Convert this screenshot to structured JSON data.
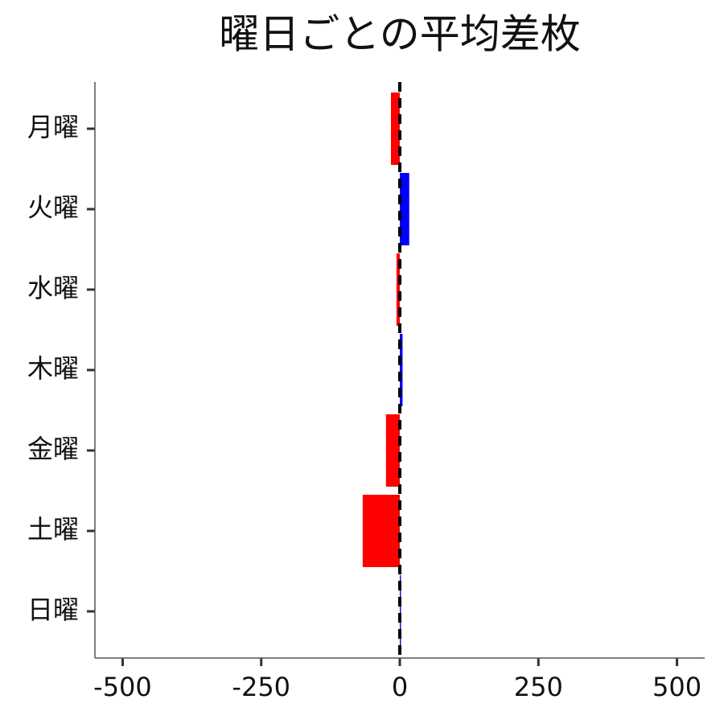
{
  "chart_data": {
    "type": "barh",
    "title": "曜日ごとの平均差枚",
    "categories": [
      "月曜",
      "火曜",
      "水曜",
      "木曜",
      "金曜",
      "土曜",
      "日曜"
    ],
    "values": [
      -16,
      17,
      -6,
      5,
      -25,
      -67,
      2
    ],
    "colors": [
      "#ff0000",
      "#0000ff",
      "#ff0000",
      "#0000ff",
      "#ff0000",
      "#ff0000",
      "#0000ff"
    ],
    "xlim": [
      -550,
      550
    ],
    "xticks": [
      -500,
      -250,
      0,
      250,
      500
    ],
    "vline": 0,
    "grid": false
  }
}
